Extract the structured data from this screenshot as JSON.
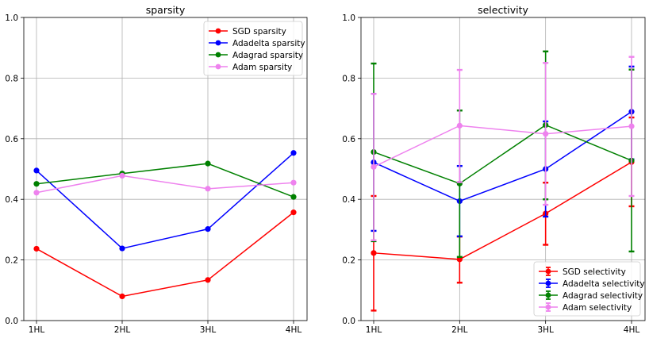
{
  "chart_data": [
    {
      "type": "line",
      "title": "sparsity",
      "xlabel": "",
      "ylabel": "",
      "categories": [
        "1HL",
        "2HL",
        "3HL",
        "4HL"
      ],
      "ylim": [
        0,
        1.0
      ],
      "yticks": [
        "0.0",
        "0.2",
        "0.4",
        "0.6",
        "0.8",
        "1.0"
      ],
      "grid": true,
      "legend_position": "top-right",
      "series": [
        {
          "name": "SGD sparsity",
          "color": "#ff0000",
          "values": [
            0.237,
            0.08,
            0.134,
            0.357
          ]
        },
        {
          "name": "Adadelta sparsity",
          "color": "#0000ff",
          "values": [
            0.495,
            0.238,
            0.302,
            0.553
          ]
        },
        {
          "name": "Adagrad sparsity",
          "color": "#008000",
          "values": [
            0.451,
            0.485,
            0.518,
            0.408
          ]
        },
        {
          "name": "Adam sparsity",
          "color": "#ee82ee",
          "values": [
            0.422,
            0.478,
            0.435,
            0.455
          ]
        }
      ]
    },
    {
      "type": "line",
      "title": "selectivity",
      "xlabel": "",
      "ylabel": "",
      "categories": [
        "1HL",
        "2HL",
        "3HL",
        "4HL"
      ],
      "ylim": [
        0,
        1.0
      ],
      "yticks": [
        "0.0",
        "0.2",
        "0.4",
        "0.6",
        "0.8",
        "1.0"
      ],
      "grid": true,
      "legend_position": "bottom-right",
      "error_bars": true,
      "series": [
        {
          "name": "SGD selectivity",
          "color": "#ff0000",
          "values": [
            0.223,
            0.202,
            0.353,
            0.523
          ],
          "err_low": [
            0.033,
            0.125,
            0.25,
            0.377
          ],
          "err_high": [
            0.411,
            0.277,
            0.455,
            0.67
          ]
        },
        {
          "name": "Adadelta selectivity",
          "color": "#0000ff",
          "values": [
            0.522,
            0.394,
            0.5,
            0.689
          ],
          "err_low": [
            0.296,
            0.278,
            0.343,
            0.532
          ],
          "err_high": [
            0.748,
            0.51,
            0.657,
            0.838
          ]
        },
        {
          "name": "Adagrad selectivity",
          "color": "#008000",
          "values": [
            0.556,
            0.452,
            0.645,
            0.528
          ],
          "err_low": [
            0.262,
            0.21,
            0.4,
            0.228
          ],
          "err_high": [
            0.848,
            0.693,
            0.888,
            0.828
          ]
        },
        {
          "name": "Adam selectivity",
          "color": "#ee82ee",
          "values": [
            0.507,
            0.643,
            0.616,
            0.641
          ],
          "err_low": [
            0.265,
            0.457,
            0.382,
            0.411
          ],
          "err_high": [
            0.748,
            0.827,
            0.85,
            0.87
          ]
        }
      ]
    }
  ]
}
